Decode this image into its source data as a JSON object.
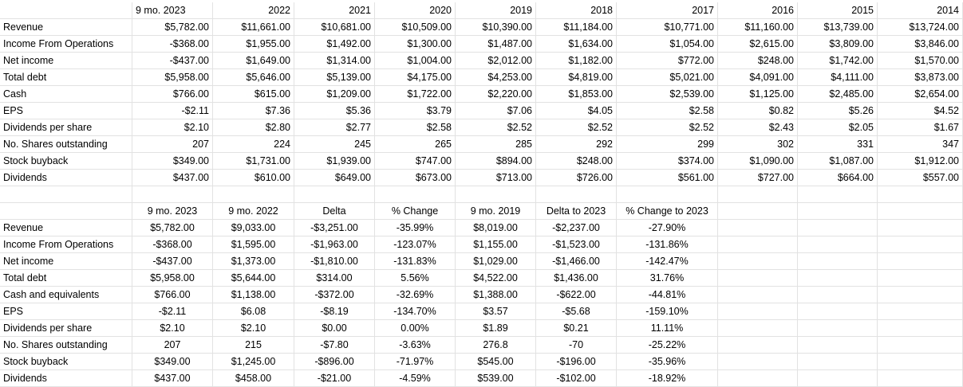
{
  "top_table": {
    "columns": [
      "9 mo. 2023",
      "2022",
      "2021",
      "2020",
      "2019",
      "2018",
      "2017",
      "2016",
      "2015",
      "2014"
    ],
    "rows": [
      {
        "label": "Revenue",
        "values": [
          "$5,782.00",
          "$11,661.00",
          "$10,681.00",
          "$10,509.00",
          "$10,390.00",
          "$11,184.00",
          "$10,771.00",
          "$11,160.00",
          "$13,739.00",
          "$13,724.00"
        ]
      },
      {
        "label": "Income From Operations",
        "values": [
          "-$368.00",
          "$1,955.00",
          "$1,492.00",
          "$1,300.00",
          "$1,487.00",
          "$1,634.00",
          "$1,054.00",
          "$2,615.00",
          "$3,809.00",
          "$3,846.00"
        ]
      },
      {
        "label": "Net income",
        "values": [
          "-$437.00",
          "$1,649.00",
          "$1,314.00",
          "$1,004.00",
          "$2,012.00",
          "$1,182.00",
          "$772.00",
          "$248.00",
          "$1,742.00",
          "$1,570.00"
        ]
      },
      {
        "label": "Total debt",
        "values": [
          "$5,958.00",
          "$5,646.00",
          "$5,139.00",
          "$4,175.00",
          "$4,253.00",
          "$4,819.00",
          "$5,021.00",
          "$4,091.00",
          "$4,111.00",
          "$3,873.00"
        ]
      },
      {
        "label": "Cash",
        "values": [
          "$766.00",
          "$615.00",
          "$1,209.00",
          "$1,722.00",
          "$2,220.00",
          "$1,853.00",
          "$2,539.00",
          "$1,125.00",
          "$2,485.00",
          "$2,654.00"
        ]
      },
      {
        "label": "EPS",
        "values": [
          "-$2.11",
          "$7.36",
          "$5.36",
          "$3.79",
          "$7.06",
          "$4.05",
          "$2.58",
          "$0.82",
          "$5.26",
          "$4.52"
        ]
      },
      {
        "label": "Dividends per share",
        "values": [
          "$2.10",
          "$2.80",
          "$2.77",
          "$2.58",
          "$2.52",
          "$2.52",
          "$2.52",
          "$2.43",
          "$2.05",
          "$1.67"
        ]
      },
      {
        "label": "No. Shares outstanding",
        "values": [
          "207",
          "224",
          "245",
          "265",
          "285",
          "292",
          "299",
          "302",
          "331",
          "347"
        ]
      },
      {
        "label": "Stock buyback",
        "values": [
          "$349.00",
          "$1,731.00",
          "$1,939.00",
          "$747.00",
          "$894.00",
          "$248.00",
          "$374.00",
          "$1,090.00",
          "$1,087.00",
          "$1,912.00"
        ]
      },
      {
        "label": "Dividends",
        "values": [
          "$437.00",
          "$610.00",
          "$649.00",
          "$673.00",
          "$713.00",
          "$726.00",
          "$561.00",
          "$727.00",
          "$664.00",
          "$557.00"
        ]
      }
    ]
  },
  "bottom_table": {
    "columns": [
      "9 mo. 2023",
      "9 mo. 2022",
      "Delta",
      "% Change",
      "9 mo. 2019",
      "Delta to 2023",
      "% Change to 2023"
    ],
    "rows": [
      {
        "label": "Revenue",
        "values": [
          "$5,782.00",
          "$9,033.00",
          "-$3,251.00",
          "-35.99%",
          "$8,019.00",
          "-$2,237.00",
          "-27.90%"
        ]
      },
      {
        "label": "Income From Operations",
        "values": [
          "-$368.00",
          "$1,595.00",
          "-$1,963.00",
          "-123.07%",
          "$1,155.00",
          "-$1,523.00",
          "-131.86%"
        ]
      },
      {
        "label": "Net income",
        "values": [
          "-$437.00",
          "$1,373.00",
          "-$1,810.00",
          "-131.83%",
          "$1,029.00",
          "-$1,466.00",
          "-142.47%"
        ]
      },
      {
        "label": "Total debt",
        "values": [
          "$5,958.00",
          "$5,644.00",
          "$314.00",
          "5.56%",
          "$4,522.00",
          "$1,436.00",
          "31.76%"
        ]
      },
      {
        "label": "Cash and equivalents",
        "values": [
          "$766.00",
          "$1,138.00",
          "-$372.00",
          "-32.69%",
          "$1,388.00",
          "-$622.00",
          "-44.81%"
        ]
      },
      {
        "label": "EPS",
        "values": [
          "-$2.11",
          "$6.08",
          "-$8.19",
          "-134.70%",
          "$3.57",
          "-$5.68",
          "-159.10%"
        ]
      },
      {
        "label": "Dividends per share",
        "values": [
          "$2.10",
          "$2.10",
          "$0.00",
          "0.00%",
          "$1.89",
          "$0.21",
          "11.11%"
        ]
      },
      {
        "label": "No. Shares outstanding",
        "values": [
          "207",
          "215",
          "-$7.80",
          "-3.63%",
          "276.8",
          "-70",
          "-25.22%"
        ]
      },
      {
        "label": "Stock buyback",
        "values": [
          "$349.00",
          "$1,245.00",
          "-$896.00",
          "-71.97%",
          "$545.00",
          "-$196.00",
          "-35.96%"
        ]
      },
      {
        "label": "Dividends",
        "values": [
          "$437.00",
          "$458.00",
          "-$21.00",
          "-4.59%",
          "$539.00",
          "-$102.00",
          "-18.92%"
        ]
      }
    ]
  }
}
